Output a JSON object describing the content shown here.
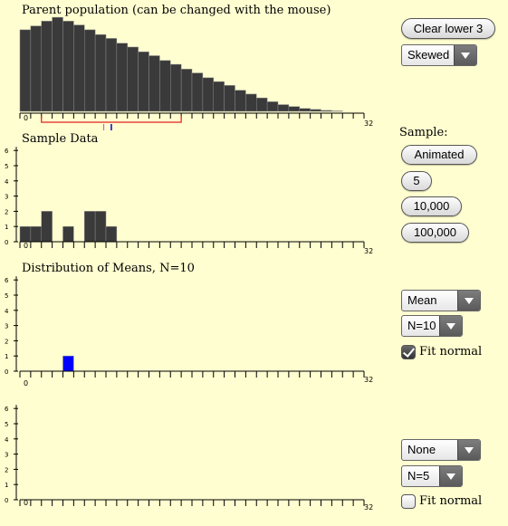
{
  "colors": {
    "bar": "#3a3a3a",
    "bar_stroke": "#8a8a8a",
    "mean_bar": "#0000ff",
    "range": "#e02020",
    "background": "#fffed0"
  },
  "panels": {
    "parent": {
      "title": "Parent population (can be changed with the mouse)",
      "axis": {
        "min_label": "0",
        "max_label": "32",
        "max": 32
      },
      "heights": [
        0.85,
        0.89,
        0.94,
        0.98,
        0.94,
        0.9,
        0.85,
        0.8,
        0.76,
        0.71,
        0.67,
        0.62,
        0.58,
        0.53,
        0.49,
        0.44,
        0.4,
        0.35,
        0.31,
        0.27,
        0.22,
        0.18,
        0.14,
        0.1,
        0.07,
        0.05,
        0.03,
        0.02,
        0.01,
        0.005,
        0.0,
        0.0
      ],
      "range_start": 2,
      "range_end": 15,
      "mean_marker": 8.5,
      "median_marker": 7.8
    },
    "sample": {
      "title": "Sample Data",
      "axis": {
        "min_label": "0",
        "max_label": "32",
        "max": 32
      },
      "y_ticks": [
        "0",
        "1",
        "2",
        "3",
        "4",
        "5",
        "6"
      ],
      "counts": [
        1,
        1,
        2,
        0,
        1,
        0,
        2,
        2,
        1,
        0,
        0,
        0,
        0,
        0,
        0,
        0,
        0,
        0,
        0,
        0,
        0,
        0,
        0,
        0,
        0,
        0,
        0,
        0,
        0,
        0,
        0,
        0
      ]
    },
    "means": {
      "title": "Distribution of Means, N=10",
      "axis": {
        "min_label": "0",
        "max_label": "32",
        "max": 32
      },
      "y_ticks": [
        "0",
        "1",
        "2",
        "3",
        "4",
        "5",
        "6"
      ],
      "counts": [
        0,
        0,
        0,
        0,
        1,
        0,
        0,
        0,
        0,
        0,
        0,
        0,
        0,
        0,
        0,
        0,
        0,
        0,
        0,
        0,
        0,
        0,
        0,
        0,
        0,
        0,
        0,
        0,
        0,
        0,
        0,
        0
      ]
    },
    "fourth": {
      "title": "",
      "axis": {
        "min_label": "0",
        "max_label": "32",
        "max": 32
      },
      "y_ticks": [
        "0",
        "1",
        "2",
        "3",
        "4",
        "5",
        "6"
      ],
      "counts": []
    }
  },
  "controls": {
    "clear_button": "Clear lower 3",
    "distribution_select": "Skewed",
    "sample_label": "Sample:",
    "sample_buttons": [
      "Animated",
      "5",
      "10,000",
      "100,000"
    ],
    "panel3_stat": "Mean",
    "panel3_n": "N=10",
    "panel3_fit": "Fit normal",
    "panel3_fit_checked": true,
    "panel4_stat": "None",
    "panel4_n": "N=5",
    "panel4_fit": "Fit normal",
    "panel4_fit_checked": false
  }
}
